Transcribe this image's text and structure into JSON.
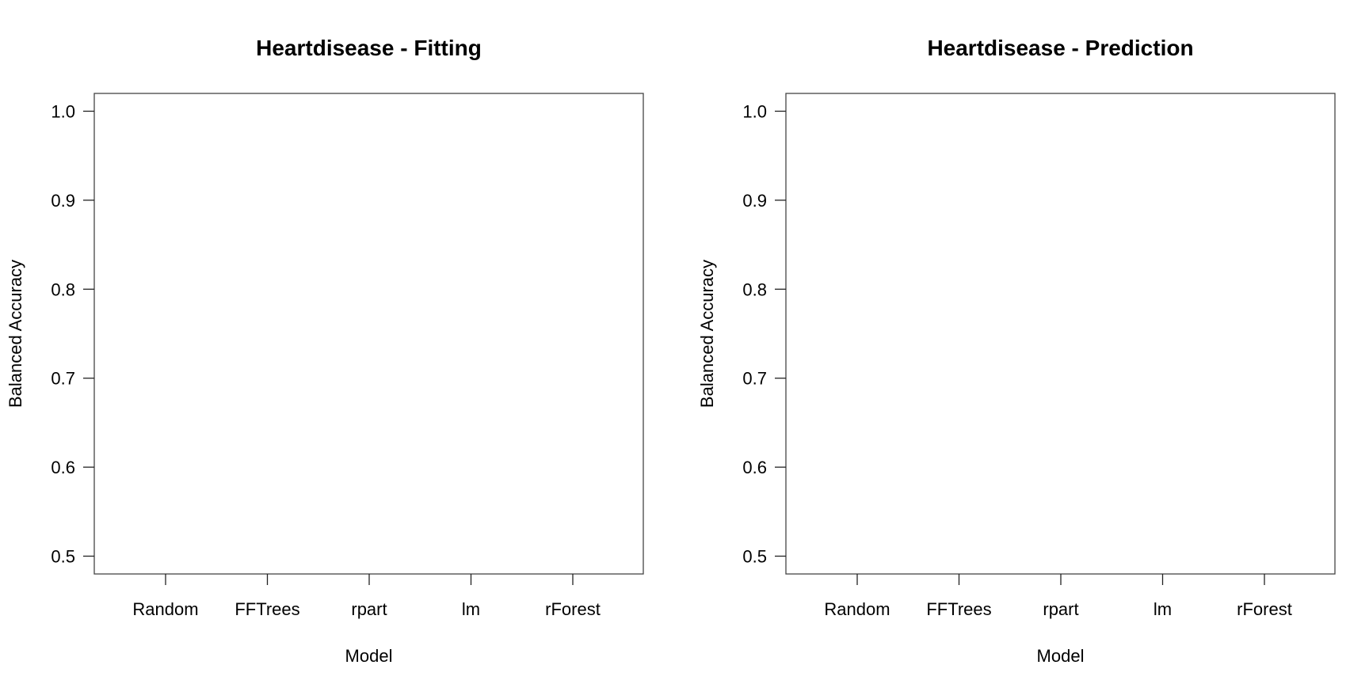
{
  "chart_data": [
    {
      "type": "scatter",
      "title": "Heartdisease - Fitting",
      "xlabel": "Model",
      "ylabel": "Balanced Accuracy",
      "categories": [
        "Random",
        "FFTrees",
        "rpart",
        "lm",
        "rForest"
      ],
      "ylim": [
        0.48,
        1.02
      ],
      "yticks": [
        "0.5",
        "0.6",
        "0.7",
        "0.8",
        "0.9",
        "1.0"
      ],
      "grid": false,
      "series": []
    },
    {
      "type": "scatter",
      "title": "Heartdisease - Prediction",
      "xlabel": "Model",
      "ylabel": "Balanced Accuracy",
      "categories": [
        "Random",
        "FFTrees",
        "rpart",
        "lm",
        "rForest"
      ],
      "ylim": [
        0.48,
        1.02
      ],
      "yticks": [
        "0.5",
        "0.6",
        "0.7",
        "0.8",
        "0.9",
        "1.0"
      ],
      "grid": false,
      "series": []
    }
  ]
}
